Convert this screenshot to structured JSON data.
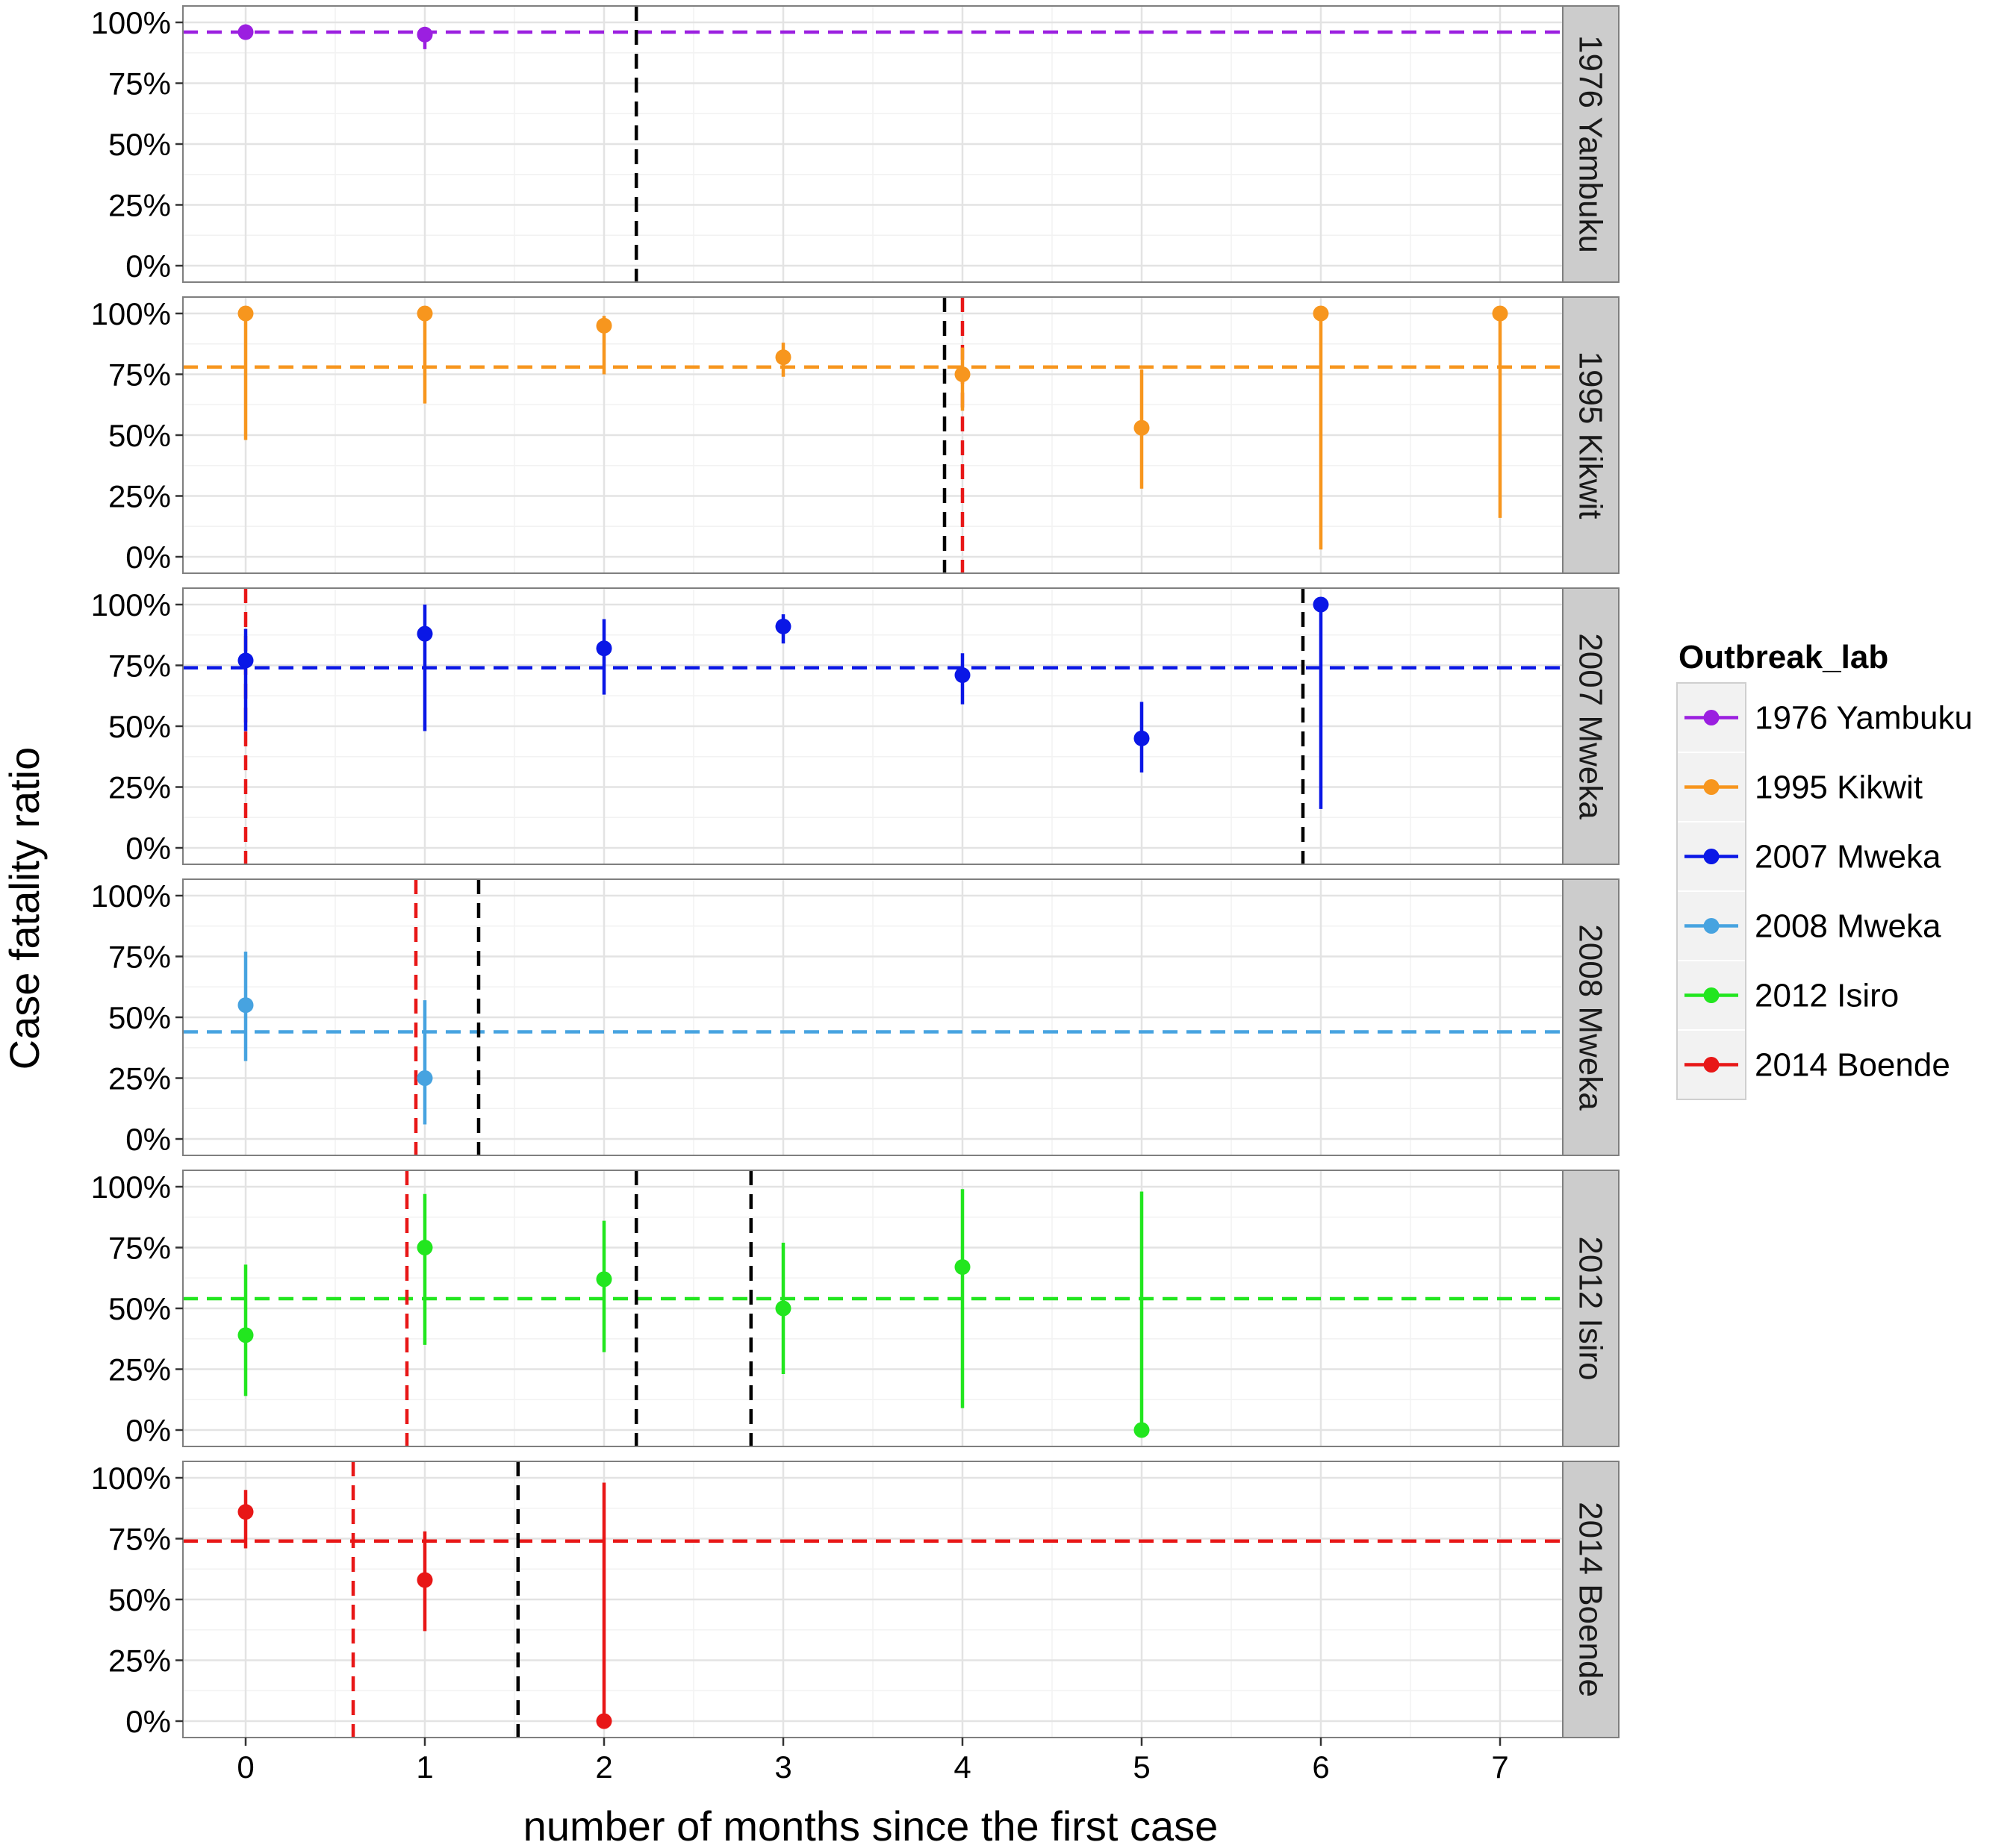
{
  "chart_data": {
    "type": "scatter",
    "subtype": "faceted point-range plot with reference lines",
    "xlabel": "number of months since the first case",
    "ylabel": "Case fatality ratio",
    "x_ticks": [
      0,
      1,
      2,
      3,
      4,
      5,
      6,
      7
    ],
    "x_tick_labels": [
      "0",
      "1",
      "2",
      "3",
      "4",
      "5",
      "6",
      "7"
    ],
    "xlim": [
      -0.35,
      7.35
    ],
    "ylim": [
      0,
      1
    ],
    "y_ticks": [
      0,
      0.25,
      0.5,
      0.75,
      1.0
    ],
    "y_tick_labels": [
      "0%",
      "25%",
      "50%",
      "75%",
      "100%"
    ],
    "grid": true,
    "legend": {
      "title": "Outbreak_lab",
      "position": "right",
      "entries": [
        {
          "label": "1976 Yambuku",
          "color": "#9B1FE0"
        },
        {
          "label": "1995 Kikwit",
          "color": "#F7961E"
        },
        {
          "label": "2007 Mweka",
          "color": "#0A17E6"
        },
        {
          "label": "2008 Mweka",
          "color": "#47A3E0"
        },
        {
          "label": "2012 Isiro",
          "color": "#22E61F"
        },
        {
          "label": "2014 Boende",
          "color": "#E81717"
        }
      ]
    },
    "facets": [
      {
        "label": "1976 Yambuku",
        "color": "#9B1FE0",
        "overall_cfr": 0.96,
        "vlines_black": [
          2.18
        ],
        "vlines_red": [],
        "points": [
          {
            "x": 0,
            "y": 0.96,
            "lo": 0.96,
            "hi": 0.96
          },
          {
            "x": 1,
            "y": 0.95,
            "lo": 0.89,
            "hi": 0.98
          }
        ]
      },
      {
        "label": "1995 Kikwit",
        "color": "#F7961E",
        "overall_cfr": 0.78,
        "vlines_black": [
          3.9
        ],
        "vlines_red": [
          4.0
        ],
        "points": [
          {
            "x": 0,
            "y": 1.0,
            "lo": 0.48,
            "hi": 1.0
          },
          {
            "x": 1,
            "y": 1.0,
            "lo": 0.63,
            "hi": 1.0
          },
          {
            "x": 2,
            "y": 0.95,
            "lo": 0.75,
            "hi": 0.99
          },
          {
            "x": 3,
            "y": 0.82,
            "lo": 0.74,
            "hi": 0.88
          },
          {
            "x": 4,
            "y": 0.75,
            "lo": 0.6,
            "hi": 0.86
          },
          {
            "x": 5,
            "y": 0.53,
            "lo": 0.28,
            "hi": 0.77
          },
          {
            "x": 6,
            "y": 1.0,
            "lo": 0.03,
            "hi": 1.0
          },
          {
            "x": 7,
            "y": 1.0,
            "lo": 0.16,
            "hi": 1.0
          }
        ]
      },
      {
        "label": "2007 Mweka",
        "color": "#0A17E6",
        "overall_cfr": 0.74,
        "vlines_black": [
          5.9
        ],
        "vlines_red": [
          0.0
        ],
        "points": [
          {
            "x": 0,
            "y": 0.77,
            "lo": 0.48,
            "hi": 0.9
          },
          {
            "x": 1,
            "y": 0.88,
            "lo": 0.48,
            "hi": 1.0
          },
          {
            "x": 2,
            "y": 0.82,
            "lo": 0.63,
            "hi": 0.94
          },
          {
            "x": 3,
            "y": 0.91,
            "lo": 0.84,
            "hi": 0.96
          },
          {
            "x": 4,
            "y": 0.71,
            "lo": 0.59,
            "hi": 0.8
          },
          {
            "x": 5,
            "y": 0.45,
            "lo": 0.31,
            "hi": 0.6
          },
          {
            "x": 6,
            "y": 1.0,
            "lo": 0.16,
            "hi": 1.0
          }
        ]
      },
      {
        "label": "2008 Mweka",
        "color": "#47A3E0",
        "overall_cfr": 0.44,
        "vlines_black": [
          1.3
        ],
        "vlines_red": [
          0.95
        ],
        "points": [
          {
            "x": 0,
            "y": 0.55,
            "lo": 0.32,
            "hi": 0.77
          },
          {
            "x": 1,
            "y": 0.25,
            "lo": 0.06,
            "hi": 0.57
          }
        ]
      },
      {
        "label": "2012 Isiro",
        "color": "#22E61F",
        "overall_cfr": 0.54,
        "vlines_black": [
          2.18,
          2.82
        ],
        "vlines_red": [
          0.9
        ],
        "points": [
          {
            "x": 0,
            "y": 0.39,
            "lo": 0.14,
            "hi": 0.68
          },
          {
            "x": 1,
            "y": 0.75,
            "lo": 0.35,
            "hi": 0.97
          },
          {
            "x": 2,
            "y": 0.62,
            "lo": 0.32,
            "hi": 0.86
          },
          {
            "x": 3,
            "y": 0.5,
            "lo": 0.23,
            "hi": 0.77
          },
          {
            "x": 4,
            "y": 0.67,
            "lo": 0.09,
            "hi": 0.99
          },
          {
            "x": 5,
            "y": 0.0,
            "lo": 0.0,
            "hi": 0.98
          }
        ]
      },
      {
        "label": "2014 Boende",
        "color": "#E81717",
        "overall_cfr": 0.74,
        "vlines_black": [
          1.52
        ],
        "vlines_red": [
          0.6
        ],
        "points": [
          {
            "x": 0,
            "y": 0.86,
            "lo": 0.71,
            "hi": 0.95
          },
          {
            "x": 1,
            "y": 0.58,
            "lo": 0.37,
            "hi": 0.78
          },
          {
            "x": 2,
            "y": 0.0,
            "lo": 0.0,
            "hi": 0.98
          }
        ]
      }
    ]
  }
}
